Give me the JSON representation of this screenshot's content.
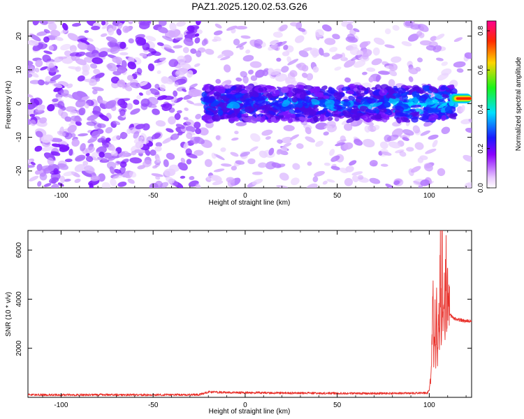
{
  "title": "PAZ1.2025.120.02.53.G26",
  "colors": {
    "snr_line": "#e8302a",
    "axis": "#000000",
    "background": "#ffffff"
  },
  "chart_data": [
    {
      "type": "heatmap",
      "name": "spectrogram",
      "xlabel": "Height of straight line (km)",
      "ylabel": "Frequency (Hz)",
      "xlim": [
        -118,
        123
      ],
      "ylim": [
        -25,
        24.5
      ],
      "xticks": [
        -100,
        -50,
        0,
        50,
        100
      ],
      "xtick_labels": [
        "-100",
        "-50",
        "0",
        "50",
        "100"
      ],
      "yticks": [
        -20,
        -10,
        0,
        10,
        20
      ],
      "ytick_labels": [
        "-20",
        "-10",
        "0",
        "10",
        "20"
      ],
      "colorbar": {
        "label": "Normalized spectral amplitude",
        "range": [
          0,
          0.85
        ],
        "ticks": [
          0,
          0.2,
          0.4,
          0.6,
          0.8
        ],
        "tick_labels": [
          "0.0",
          "0.2",
          "0.4",
          "0.6",
          "0.8"
        ],
        "colormap": "rainbow (white-violet-blue-cyan-green-yellow-red-magenta)"
      },
      "features": {
        "noise_region_x": [
          -118,
          -25
        ],
        "signal_band_center_hz": 0,
        "signal_band_halfwidth_hz": 5,
        "signal_start_x": -22,
        "peak_x": 114,
        "peak_frequency_hz": 1.5,
        "peak_amplitude": 0.85
      }
    },
    {
      "type": "line",
      "name": "snr",
      "xlabel": "Height of straight line (km)",
      "ylabel": "SNR (10 * v/v)",
      "xlim": [
        -118,
        123
      ],
      "ylim": [
        0,
        6800
      ],
      "xticks": [
        -100,
        -50,
        0,
        50,
        100
      ],
      "xtick_labels": [
        "-100",
        "-50",
        "0",
        "50",
        "100"
      ],
      "yticks": [
        2000,
        4000,
        6000
      ],
      "ytick_labels": [
        "2000",
        "4000",
        "6000"
      ],
      "series": [
        {
          "color": "#e8302a",
          "x": [
            -118,
            -100,
            -80,
            -60,
            -40,
            -25,
            -20,
            -10,
            0,
            20,
            40,
            60,
            80,
            95,
            99,
            100,
            101,
            102,
            102.5,
            103,
            103.5,
            104,
            104.5,
            105,
            105.5,
            106,
            106.5,
            107,
            107.5,
            108,
            108.5,
            109,
            109.5,
            110,
            110.5,
            111,
            112,
            114,
            117,
            120,
            123
          ],
          "y": [
            110,
            100,
            105,
            100,
            105,
            110,
            220,
            200,
            190,
            180,
            170,
            160,
            160,
            170,
            180,
            300,
            800,
            4300,
            1500,
            3800,
            1200,
            4100,
            900,
            3900,
            2000,
            6500,
            1800,
            6800,
            2500,
            5200,
            1900,
            6800,
            3000,
            4300,
            3500,
            3400,
            3300,
            3200,
            3150,
            3100,
            3100
          ]
        }
      ]
    }
  ]
}
